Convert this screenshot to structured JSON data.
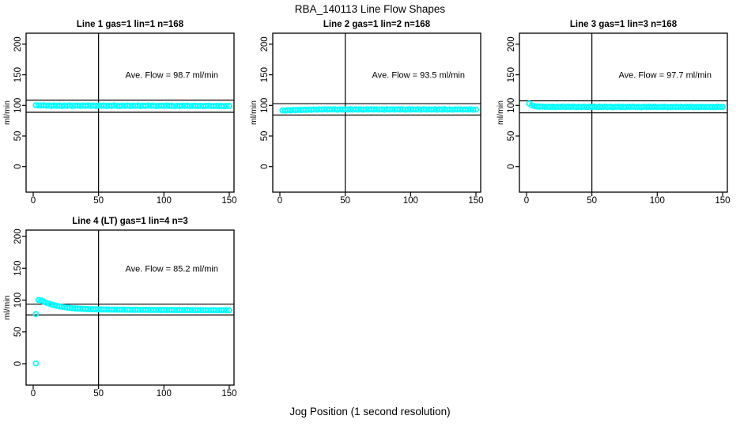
{
  "figure": {
    "title": "RBA_140113  Line Flow Shapes",
    "xlabel": "Jog Position (1 second resolution)",
    "point_color": "#00ffff",
    "axis_color": "#000000",
    "background": "#ffffff"
  },
  "chart_data": [
    {
      "type": "scatter",
      "title": "Line 1 gas=1 lin=1 n=168",
      "annotation": "Ave. Flow =  98.7  ml/min",
      "ave_flow": 98.7,
      "ylabel": "ml/min",
      "xticks": [
        0,
        50,
        100,
        150
      ],
      "yticks": [
        0,
        50,
        100,
        150,
        200
      ],
      "xlim": [
        0,
        150
      ],
      "ylim": [
        0,
        200
      ],
      "vline": 50,
      "hlines": [
        108.6,
        88.8
      ],
      "legend": null,
      "grid": false,
      "x_start": 2,
      "x_step": 2,
      "y": [
        100.4,
        100.1,
        99.8,
        100.2,
        99.6,
        99.9,
        99.3,
        100.0,
        99.5,
        99.8,
        99.1,
        99.7,
        99.4,
        100.1,
        99.0,
        99.6,
        99.9,
        99.2,
        99.8,
        99.5,
        100.0,
        99.3,
        99.7,
        99.1,
        99.9,
        99.4,
        99.8,
        99.0,
        99.6,
        99.2,
        100.0,
        99.5,
        98.9,
        99.7,
        99.3,
        99.8,
        99.1,
        99.6,
        99.4,
        99.9,
        99.0,
        99.5,
        99.2,
        99.8,
        99.4,
        99.7,
        98.9,
        99.3,
        99.6,
        99.1,
        99.8,
        99.2,
        99.5,
        98.8,
        99.4,
        99.0,
        99.6,
        99.3,
        99.7,
        98.9,
        99.2,
        99.5,
        99.0,
        99.4,
        98.8,
        99.3,
        99.6,
        99.1,
        98.9,
        99.4,
        99.0,
        99.2,
        98.8,
        99.3,
        99.1
      ],
      "extra_points": []
    },
    {
      "type": "scatter",
      "title": "Line 2 gas=1 lin=2 n=168",
      "annotation": "Ave. Flow =  93.5  ml/min",
      "ave_flow": 93.5,
      "ylabel": "ml/min",
      "xticks": [
        0,
        50,
        100,
        150
      ],
      "yticks": [
        0,
        50,
        100,
        150,
        200
      ],
      "xlim": [
        0,
        150
      ],
      "ylim": [
        0,
        200
      ],
      "vline": 50,
      "hlines": [
        102.9,
        84.2
      ],
      "legend": null,
      "grid": false,
      "x_start": 2,
      "x_step": 2,
      "y": [
        92.0,
        91.6,
        92.3,
        91.9,
        92.6,
        92.2,
        92.8,
        92.4,
        93.0,
        92.6,
        93.2,
        92.8,
        93.4,
        93.0,
        93.5,
        93.1,
        93.6,
        93.2,
        93.7,
        93.3,
        93.5,
        93.0,
        93.6,
        93.2,
        93.8,
        93.3,
        93.5,
        93.1,
        93.7,
        93.2,
        93.6,
        93.0,
        93.5,
        93.3,
        93.8,
        93.2,
        93.6,
        93.1,
        93.4,
        93.0,
        93.7,
        93.3,
        93.5,
        93.1,
        93.6,
        93.2,
        93.8,
        93.0,
        93.4,
        93.1,
        93.6,
        93.3,
        93.5,
        93.0,
        93.7,
        93.2,
        93.4,
        93.1,
        93.6,
        93.0,
        93.5,
        93.2,
        93.7,
        93.1,
        93.4,
        93.0,
        93.6,
        93.3,
        93.5,
        93.1,
        93.4,
        93.2,
        93.6,
        93.0,
        93.3
      ],
      "extra_points": []
    },
    {
      "type": "scatter",
      "title": "Line 3 gas=1 lin=3 n=168",
      "annotation": "Ave. Flow =  97.7  ml/min",
      "ave_flow": 97.7,
      "ylabel": "ml/min",
      "xticks": [
        0,
        50,
        100,
        150
      ],
      "yticks": [
        0,
        50,
        100,
        150,
        200
      ],
      "xlim": [
        0,
        150
      ],
      "ylim": [
        0,
        200
      ],
      "vline": 50,
      "hlines": [
        107.5,
        87.9
      ],
      "legend": null,
      "grid": false,
      "x_start": 2,
      "x_step": 2,
      "y": [
        103.0,
        100.2,
        98.8,
        98.2,
        97.9,
        98.1,
        97.6,
        98.0,
        97.4,
        97.9,
        97.2,
        97.8,
        97.5,
        98.1,
        97.3,
        97.9,
        97.6,
        98.0,
        97.2,
        97.7,
        97.4,
        98.0,
        97.3,
        97.8,
        97.5,
        97.9,
        97.2,
        97.7,
        97.4,
        98.0,
        97.3,
        97.8,
        97.1,
        97.6,
        97.9,
        97.4,
        97.7,
        97.2,
        97.8,
        97.5,
        97.9,
        97.3,
        97.6,
        97.1,
        97.8,
        97.4,
        97.7,
        97.3,
        97.9,
        97.2,
        97.6,
        97.4,
        97.8,
        97.1,
        97.5,
        97.3,
        97.7,
        97.4,
        97.8,
        97.2,
        97.6,
        97.3,
        97.7,
        97.1,
        97.5,
        97.4,
        97.8,
        97.2,
        97.6,
        97.3,
        97.5,
        97.2,
        97.7,
        97.4,
        97.6
      ],
      "extra_points": []
    },
    {
      "type": "scatter",
      "title": "Line 4 (LT) gas=1 lin=4 n=3",
      "annotation": "Ave. Flow =  85.2  ml/min",
      "ave_flow": 85.2,
      "ylabel": "ml/min",
      "xticks": [
        0,
        50,
        100,
        150
      ],
      "yticks": [
        0,
        50,
        100,
        150,
        200
      ],
      "xlim": [
        0,
        150
      ],
      "ylim": [
        0,
        200
      ],
      "vline": 50,
      "hlines": [
        93.7,
        76.7
      ],
      "legend": null,
      "grid": false,
      "x_start": 2,
      "x_step": 2,
      "y": [
        78.0,
        100.2,
        99.5,
        97.8,
        96.0,
        94.5,
        93.2,
        92.0,
        91.0,
        90.1,
        89.4,
        88.8,
        88.2,
        87.7,
        87.3,
        87.0,
        86.7,
        86.5,
        86.2,
        86.0,
        85.9,
        85.7,
        85.6,
        85.5,
        85.4,
        85.3,
        85.2,
        85.2,
        85.1,
        85.1,
        85.0,
        85.0,
        84.9,
        85.0,
        84.8,
        84.9,
        84.8,
        84.8,
        84.7,
        84.8,
        84.6,
        84.7,
        84.6,
        84.7,
        84.5,
        84.6,
        84.5,
        84.6,
        84.4,
        84.5,
        84.4,
        84.5,
        84.3,
        84.4,
        84.3,
        84.4,
        84.2,
        84.3,
        84.4,
        84.2,
        84.3,
        84.1,
        84.2,
        84.3,
        84.1,
        84.2,
        84.0,
        84.1,
        84.2,
        84.0,
        84.1,
        84.0,
        84.2,
        84.1,
        84.0
      ],
      "extra_points": [
        [
          2,
          0.5
        ]
      ]
    }
  ]
}
